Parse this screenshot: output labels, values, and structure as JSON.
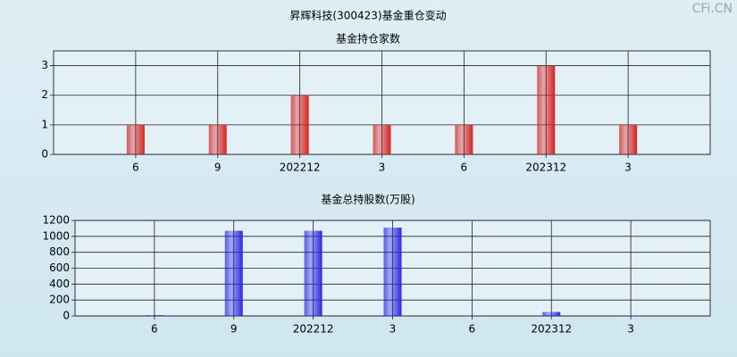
{
  "title": "昇辉科技(300423)基金重仓变动",
  "watermark": "CFi.CN",
  "chart_data": [
    {
      "type": "bar",
      "title": "基金持仓家数",
      "categories": [
        "6",
        "9",
        "202212",
        "3",
        "6",
        "202312",
        "3"
      ],
      "values": [
        1,
        1,
        2,
        1,
        1,
        3,
        1
      ],
      "color": "#d42424",
      "ylim": [
        0,
        3.5
      ],
      "yticks": [
        0,
        1,
        2,
        3
      ],
      "grid": true
    },
    {
      "type": "bar",
      "title": "基金总持股数(万股)",
      "categories": [
        "6",
        "9",
        "202212",
        "3",
        "6",
        "202312",
        "3"
      ],
      "values": [
        10,
        1070,
        1070,
        1110,
        5,
        50,
        5
      ],
      "color": "#2a2ae0",
      "ylim": [
        0,
        1200
      ],
      "yticks": [
        0,
        200,
        400,
        600,
        800,
        1000,
        1200
      ],
      "grid": true
    }
  ]
}
